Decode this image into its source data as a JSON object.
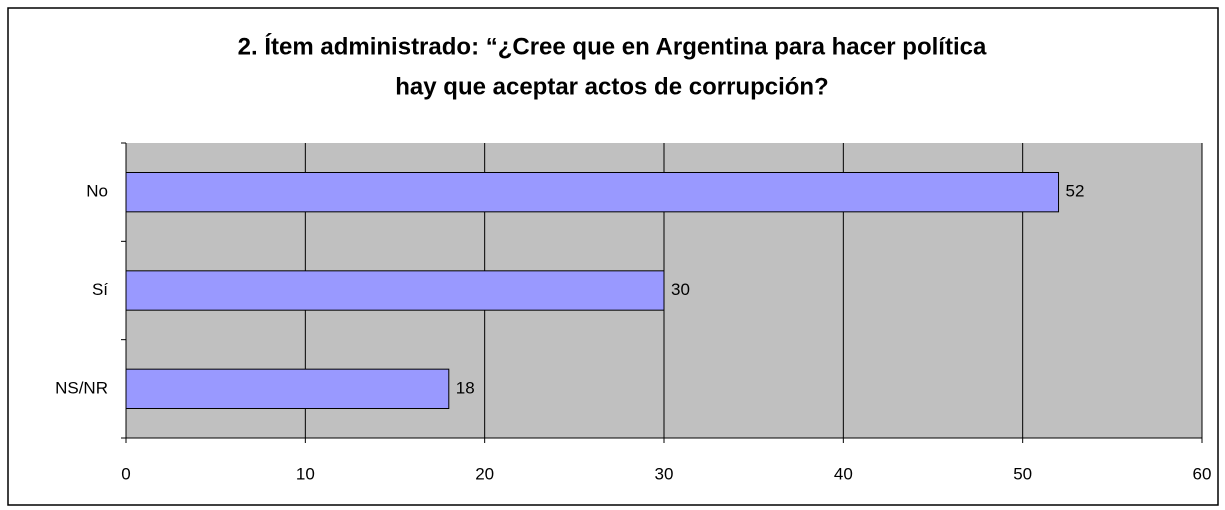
{
  "chart_data": {
    "type": "bar",
    "orientation": "horizontal",
    "title": [
      "2. Ítem administrado: “¿Cree que en Argentina para hacer política",
      "hay que aceptar actos de corrupción?"
    ],
    "categories": [
      "No",
      "Sí",
      "NS/NR"
    ],
    "values": [
      52,
      30,
      18
    ],
    "color": "#9999ff",
    "xlim": [
      0,
      60
    ],
    "xticks": [
      0,
      10,
      20,
      30,
      40,
      50,
      60
    ],
    "grid": true,
    "plot_background": "#c0c0c0"
  }
}
